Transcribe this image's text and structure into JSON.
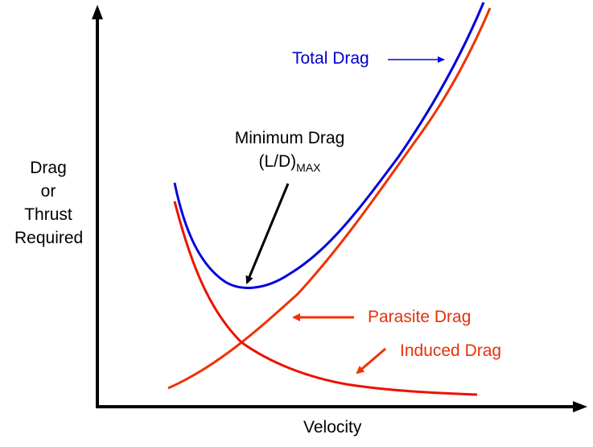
{
  "diagram": {
    "y_axis_label": [
      "Drag",
      "or",
      "Thrust",
      "Required"
    ],
    "x_axis_label": "Velocity",
    "labels": {
      "total_drag": "Total Drag",
      "minimum_drag_line1": "Minimum Drag",
      "minimum_drag_ld": "(L/D)",
      "minimum_drag_sub": "MAX",
      "parasite_drag": "Parasite Drag",
      "induced_drag": "Induced Drag"
    },
    "colors": {
      "total_drag": "#0000dd",
      "parasite_drag": "#ee3300",
      "induced_drag": "#ee1100",
      "axis": "#000000",
      "total_drag_label": "#0000cc",
      "drag_labels": "#e8300a"
    },
    "curves": [
      "total-drag-curve",
      "parasite-drag-curve",
      "induced-drag-curve"
    ]
  }
}
